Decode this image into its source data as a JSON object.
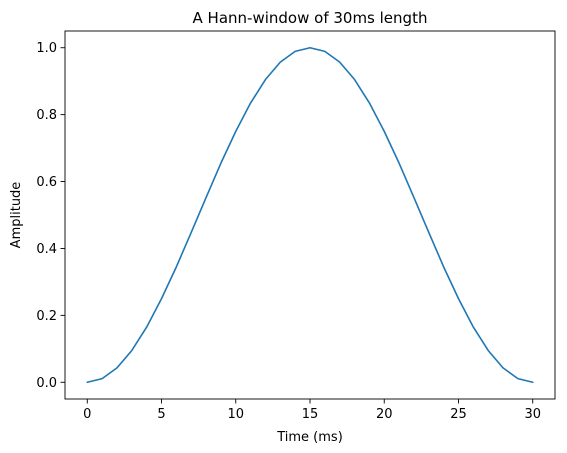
{
  "chart_data": {
    "type": "line",
    "title": "A Hann-window of 30ms length",
    "xlabel": "Time (ms)",
    "ylabel": "Amplitude",
    "xlim": [
      -1.5,
      31.5
    ],
    "ylim": [
      -0.05,
      1.05
    ],
    "xticks": [
      0,
      5,
      10,
      15,
      20,
      25,
      30
    ],
    "yticks": [
      0.0,
      0.2,
      0.4,
      0.6,
      0.8,
      1.0
    ],
    "xtick_labels": [
      "0",
      "5",
      "10",
      "15",
      "20",
      "25",
      "30"
    ],
    "ytick_labels": [
      "0.0",
      "0.2",
      "0.4",
      "0.6",
      "0.8",
      "1.0"
    ],
    "grid": false,
    "series": [
      {
        "color": "#1f77b4",
        "x": [
          0,
          1,
          2,
          3,
          4,
          5,
          6,
          7,
          8,
          9,
          10,
          11,
          12,
          13,
          14,
          15,
          16,
          17,
          18,
          19,
          20,
          21,
          22,
          23,
          24,
          25,
          26,
          27,
          28,
          29,
          30
        ],
        "y": [
          0.0,
          0.011,
          0.043,
          0.095,
          0.165,
          0.25,
          0.345,
          0.448,
          0.552,
          0.655,
          0.75,
          0.835,
          0.905,
          0.957,
          0.989,
          1.0,
          0.989,
          0.957,
          0.905,
          0.835,
          0.75,
          0.655,
          0.552,
          0.448,
          0.345,
          0.25,
          0.165,
          0.095,
          0.043,
          0.011,
          0.0
        ]
      }
    ]
  }
}
